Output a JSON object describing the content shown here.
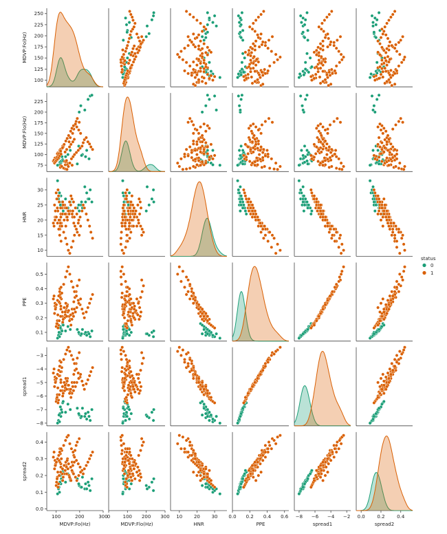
{
  "chart_data": {
    "type": "scatter",
    "variables": [
      "MDVP:Fo(Hz)",
      "MDVP:Flo(Hz)",
      "HNR",
      "PPE",
      "spread1",
      "spread2"
    ],
    "axis_labels": [
      "MDVP:Fo(Hz)",
      "MDVP:Flo(Hz)",
      "HNR",
      "PPE",
      "spread1",
      "spread2"
    ],
    "x_ranges": [
      [
        60,
        300
      ],
      [
        0,
        300
      ],
      [
        5,
        37
      ],
      [
        0,
        0.65
      ],
      [
        -8.6,
        -1.5
      ],
      [
        -0.05,
        0.52
      ]
    ],
    "x_ticks": [
      [
        100,
        200,
        300
      ],
      [
        0,
        100,
        200,
        300
      ],
      [
        10,
        20,
        30
      ],
      [
        0,
        0.2,
        0.4,
        0.6
      ],
      [
        -8,
        -6,
        -4,
        -2
      ],
      [
        0,
        0.2,
        0.4
      ]
    ],
    "x_tick_labels": [
      [
        "100",
        "200",
        "300"
      ],
      [
        "0",
        "100",
        "200",
        "300"
      ],
      [
        "10",
        "20",
        "30"
      ],
      [
        "0.0",
        "0.2",
        "0.4",
        "0.6"
      ],
      [
        "−8",
        "−6",
        "−4",
        "−2"
      ],
      [
        "0.0",
        "0.2",
        "0.4"
      ]
    ],
    "y_ranges": [
      [
        85,
        262
      ],
      [
        60,
        245
      ],
      [
        8,
        34
      ],
      [
        0.04,
        0.58
      ],
      [
        -8.2,
        -2.4
      ],
      [
        -0.01,
        0.46
      ]
    ],
    "y_ticks": [
      [
        100,
        125,
        150,
        175,
        200,
        225,
        250
      ],
      [
        75,
        100,
        125,
        150,
        175,
        200,
        225
      ],
      [
        10,
        15,
        20,
        25,
        30
      ],
      [
        0.1,
        0.2,
        0.3,
        0.4,
        0.5
      ],
      [
        -8,
        -7,
        -6,
        -5,
        -4,
        -3
      ],
      [
        0.0,
        0.1,
        0.2,
        0.3,
        0.4
      ]
    ],
    "y_tick_labels": [
      [
        "100",
        "125",
        "150",
        "175",
        "200",
        "225",
        "250"
      ],
      [
        "75",
        "100",
        "125",
        "150",
        "175",
        "200",
        "225"
      ],
      [
        "10",
        "15",
        "20",
        "25",
        "30"
      ],
      [
        "0.1",
        "0.2",
        "0.3",
        "0.4",
        "0.5"
      ],
      [
        "−8",
        "−7",
        "−6",
        "−5",
        "−4",
        "−3"
      ],
      [
        "0.0",
        "0.1",
        "0.2",
        "0.3",
        "0.4"
      ]
    ],
    "hue": "status",
    "legend": {
      "title": "status",
      "placement": "right",
      "entries": [
        "0",
        "1"
      ]
    },
    "series": [
      {
        "name": "0",
        "color": "#1b9e77",
        "points": [
          [
            120,
            80,
            28,
            0.09,
            -7.5,
            0.15
          ],
          [
            116,
            82,
            26,
            0.1,
            -7.3,
            0.16
          ],
          [
            122,
            85,
            25,
            0.12,
            -7.0,
            0.18
          ],
          [
            110,
            90,
            27,
            0.08,
            -7.8,
            0.12
          ],
          [
            118,
            78,
            24,
            0.14,
            -6.8,
            0.2
          ],
          [
            125,
            95,
            26,
            0.11,
            -7.2,
            0.17
          ],
          [
            114,
            76,
            29,
            0.07,
            -7.9,
            0.1
          ],
          [
            128,
            88,
            22,
            0.16,
            -6.5,
            0.22
          ],
          [
            198,
            200,
            23,
            0.09,
            -7.4,
            0.14
          ],
          [
            205,
            215,
            25,
            0.08,
            -7.6,
            0.13
          ],
          [
            236,
            230,
            27,
            0.1,
            -7.2,
            0.16
          ],
          [
            245,
            238,
            30,
            0.07,
            -7.8,
            0.11
          ],
          [
            222,
            205,
            31,
            0.09,
            -7.5,
            0.12
          ],
          [
            252,
            240,
            26,
            0.11,
            -7.0,
            0.18
          ],
          [
            212,
            100,
            24,
            0.12,
            -6.9,
            0.19
          ],
          [
            225,
            95,
            26,
            0.1,
            -7.3,
            0.15
          ],
          [
            240,
            90,
            27,
            0.09,
            -7.5,
            0.14
          ],
          [
            230,
            110,
            29,
            0.08,
            -7.7,
            0.12
          ],
          [
            118,
            105,
            25,
            0.13,
            -6.8,
            0.2
          ],
          [
            112,
            92,
            28,
            0.1,
            -7.4,
            0.13
          ],
          [
            150,
            100,
            24,
            0.14,
            -6.6,
            0.21
          ],
          [
            160,
            110,
            26,
            0.12,
            -7.0,
            0.17
          ],
          [
            140,
            95,
            27,
            0.11,
            -7.2,
            0.16
          ],
          [
            130,
            85,
            23,
            0.15,
            -6.4,
            0.23
          ],
          [
            196,
            120,
            25,
            0.1,
            -7.3,
            0.15
          ],
          [
            208,
            98,
            26,
            0.09,
            -7.5,
            0.13
          ],
          [
            190,
            78,
            24,
            0.12,
            -6.9,
            0.18
          ],
          [
            106,
            75,
            33,
            0.06,
            -8.0,
            0.09
          ]
        ]
      },
      {
        "name": "1",
        "color": "#d95f02",
        "points": [
          [
            120,
            74,
            21,
            0.28,
            -4.8,
            0.27
          ],
          [
            122,
            113,
            19,
            0.33,
            -4.2,
            0.3
          ],
          [
            116,
            111,
            20,
            0.3,
            -4.5,
            0.28
          ],
          [
            117,
            110,
            18,
            0.36,
            -3.8,
            0.33
          ],
          [
            116,
            110,
            17,
            0.4,
            -3.4,
            0.36
          ],
          [
            120,
            113,
            22,
            0.26,
            -5.0,
            0.25
          ],
          [
            107,
            104,
            23,
            0.22,
            -5.4,
            0.22
          ],
          [
            105,
            102,
            24,
            0.18,
            -5.9,
            0.19
          ],
          [
            95,
            91,
            20,
            0.3,
            -4.6,
            0.29
          ],
          [
            95,
            92,
            21,
            0.28,
            -4.8,
            0.26
          ],
          [
            88,
            85,
            19,
            0.33,
            -4.3,
            0.31
          ],
          [
            91,
            87,
            18,
            0.35,
            -4.0,
            0.34
          ],
          [
            136,
            84,
            25,
            0.2,
            -5.6,
            0.21
          ],
          [
            139,
            76,
            24,
            0.22,
            -5.4,
            0.23
          ],
          [
            142,
            83,
            22,
            0.25,
            -5.1,
            0.26
          ],
          [
            144,
            86,
            21,
            0.27,
            -4.9,
            0.25
          ],
          [
            150,
            79,
            23,
            0.24,
            -5.2,
            0.24
          ],
          [
            148,
            76,
            20,
            0.29,
            -4.7,
            0.3
          ],
          [
            168,
            75,
            22,
            0.26,
            -5.0,
            0.28
          ],
          [
            170,
            150,
            21,
            0.23,
            -5.3,
            0.22
          ],
          [
            175,
            160,
            19,
            0.31,
            -4.4,
            0.32
          ],
          [
            180,
            170,
            18,
            0.34,
            -4.1,
            0.35
          ],
          [
            185,
            178,
            17,
            0.38,
            -3.6,
            0.38
          ],
          [
            190,
            185,
            16,
            0.42,
            -3.2,
            0.4
          ],
          [
            198,
            176,
            15,
            0.46,
            -2.8,
            0.42
          ],
          [
            155,
            130,
            22,
            0.21,
            -5.5,
            0.2
          ],
          [
            160,
            140,
            23,
            0.19,
            -5.7,
            0.18
          ],
          [
            128,
            120,
            26,
            0.17,
            -6.0,
            0.17
          ],
          [
            130,
            118,
            25,
            0.19,
            -5.8,
            0.19
          ],
          [
            126,
            115,
            24,
            0.21,
            -5.6,
            0.21
          ],
          [
            110,
            96,
            28,
            0.15,
            -6.3,
            0.15
          ],
          [
            102,
            88,
            27,
            0.16,
            -6.2,
            0.16
          ],
          [
            100,
            90,
            29,
            0.14,
            -6.4,
            0.14
          ],
          [
            98,
            85,
            21,
            0.27,
            -4.9,
            0.27
          ],
          [
            112,
            100,
            20,
            0.31,
            -4.5,
            0.29
          ],
          [
            118,
            70,
            19,
            0.34,
            -4.2,
            0.33
          ],
          [
            124,
            72,
            18,
            0.37,
            -3.9,
            0.35
          ],
          [
            132,
            68,
            16,
            0.43,
            -3.3,
            0.38
          ],
          [
            140,
            66,
            14,
            0.48,
            -2.9,
            0.41
          ],
          [
            146,
            65,
            12,
            0.52,
            -2.6,
            0.43
          ],
          [
            152,
            72,
            10,
            0.55,
            -2.4,
            0.44
          ],
          [
            158,
            80,
            9,
            0.5,
            -2.7,
            0.39
          ],
          [
            165,
            90,
            11,
            0.45,
            -3.0,
            0.36
          ],
          [
            172,
            95,
            13,
            0.41,
            -3.3,
            0.34
          ],
          [
            178,
            100,
            15,
            0.38,
            -3.6,
            0.31
          ],
          [
            186,
            105,
            17,
            0.35,
            -4.0,
            0.29
          ],
          [
            194,
            110,
            19,
            0.32,
            -4.3,
            0.27
          ],
          [
            202,
            115,
            21,
            0.29,
            -4.6,
            0.25
          ],
          [
            210,
            120,
            23,
            0.26,
            -4.9,
            0.23
          ],
          [
            215,
            128,
            25,
            0.23,
            -5.2,
            0.21
          ],
          [
            220,
            135,
            24,
            0.2,
            -5.5,
            0.24
          ],
          [
            228,
            140,
            22,
            0.24,
            -5.1,
            0.26
          ],
          [
            235,
            130,
            20,
            0.27,
            -4.8,
            0.28
          ],
          [
            242,
            125,
            18,
            0.3,
            -4.5,
            0.3
          ],
          [
            248,
            118,
            16,
            0.33,
            -4.2,
            0.32
          ],
          [
            255,
            112,
            14,
            0.36,
            -3.9,
            0.34
          ],
          [
            108,
            98,
            30,
            0.13,
            -6.5,
            0.13
          ],
          [
            104,
            94,
            27,
            0.16,
            -6.1,
            0.18
          ],
          [
            113,
            102,
            26,
            0.18,
            -5.9,
            0.2
          ],
          [
            119,
            108,
            24,
            0.21,
            -5.6,
            0.22
          ],
          [
            127,
            116,
            22,
            0.24,
            -5.3,
            0.24
          ],
          [
            134,
            124,
            20,
            0.27,
            -5.0,
            0.26
          ],
          [
            141,
            132,
            18,
            0.3,
            -4.7,
            0.28
          ],
          [
            147,
            138,
            21,
            0.28,
            -4.9,
            0.29
          ],
          [
            153,
            145,
            23,
            0.25,
            -5.2,
            0.27
          ],
          [
            162,
            155,
            25,
            0.22,
            -5.5,
            0.25
          ],
          [
            167,
            162,
            27,
            0.19,
            -5.8,
            0.23
          ],
          [
            174,
            168,
            26,
            0.21,
            -5.6,
            0.21
          ],
          [
            182,
            172,
            24,
            0.24,
            -5.3,
            0.19
          ],
          [
            188,
            165,
            22,
            0.27,
            -5.0,
            0.17
          ],
          [
            196,
            158,
            20,
            0.3,
            -4.7,
            0.2
          ],
          [
            204,
            150,
            18,
            0.33,
            -4.4,
            0.22
          ],
          [
            93,
            80,
            25,
            0.23,
            -5.3,
            0.24
          ],
          [
            97,
            83,
            23,
            0.26,
            -5.0,
            0.26
          ],
          [
            101,
            86,
            21,
            0.29,
            -4.7,
            0.28
          ],
          [
            106,
            89,
            19,
            0.32,
            -4.4,
            0.3
          ],
          [
            111,
            93,
            17,
            0.35,
            -4.1,
            0.32
          ],
          [
            115,
            97,
            15,
            0.38,
            -3.8,
            0.34
          ],
          [
            121,
            101,
            13,
            0.41,
            -3.5,
            0.36
          ],
          [
            138,
            106,
            22,
            0.24,
            -5.2,
            0.23
          ],
          [
            145,
            112,
            24,
            0.21,
            -5.5,
            0.21
          ],
          [
            157,
            118,
            26,
            0.18,
            -5.8,
            0.19
          ],
          [
            163,
            124,
            28,
            0.15,
            -6.1,
            0.17
          ],
          [
            171,
            130,
            23,
            0.23,
            -5.3,
            0.26
          ],
          [
            177,
            136,
            21,
            0.26,
            -5.0,
            0.28
          ]
        ]
      }
    ]
  }
}
